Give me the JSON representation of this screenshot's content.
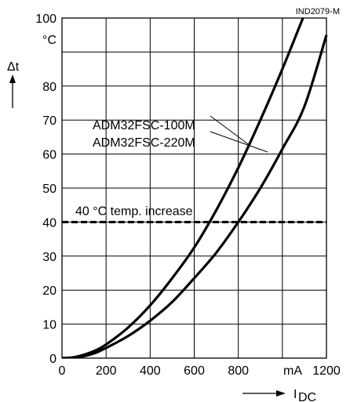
{
  "chart_data": {
    "type": "line",
    "figure_id": "IND2079-M",
    "ylabel": "Δt",
    "yunit": "°C",
    "xlabel_arrow": "",
    "xlabel": "I",
    "xlabel_sub": "DC",
    "xunit": "mA",
    "xlim": [
      0,
      1200
    ],
    "ylim": [
      0,
      100
    ],
    "xticks": [
      0,
      200,
      400,
      600,
      800,
      1200
    ],
    "yticks": [
      0,
      10,
      20,
      30,
      40,
      50,
      60,
      70,
      80,
      100
    ],
    "grid": true,
    "series": [
      {
        "name": "ADM32FSC-100M",
        "x": [
          0,
          50,
          100,
          150,
          200,
          300,
          400,
          500,
          600,
          700,
          800,
          900,
          1000,
          1100,
          1150
        ],
        "y": [
          0,
          0.2,
          1,
          2.2,
          4,
          9,
          15.5,
          23.5,
          32.5,
          43.5,
          56,
          70,
          85,
          101,
          108
        ]
      },
      {
        "name": "ADM32FSC-220M",
        "x": [
          0,
          50,
          100,
          150,
          200,
          300,
          400,
          500,
          600,
          700,
          800,
          900,
          1000,
          1100,
          1200
        ],
        "y": [
          0,
          0.1,
          0.6,
          1.5,
          3,
          6.5,
          11,
          16.5,
          23.5,
          31,
          40,
          50,
          61.5,
          74,
          95
        ]
      }
    ],
    "threshold": {
      "y": 40,
      "label": "40 °C temp. increase"
    }
  }
}
